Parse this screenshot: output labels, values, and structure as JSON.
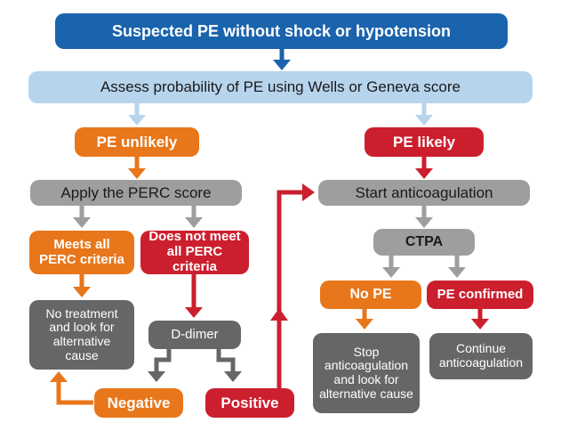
{
  "colors": {
    "title_blue": "#1a63ad",
    "light_blue": "#b7d4ed",
    "orange": "#e8761a",
    "red": "#cc1f2e",
    "gray": "#9e9e9e",
    "dark_gray": "#666666"
  },
  "nodes": {
    "title": "Suspected PE without shock or hypotension",
    "assess": "Assess probability of PE using Wells or Geneva score",
    "pe_unlikely": "PE unlikely",
    "pe_likely": "PE likely",
    "apply_perc": "Apply the PERC score",
    "start_anticoag": "Start anticoagulation",
    "meets_perc": "Meets all PERC criteria",
    "not_meets_perc": "Does not meet all PERC criteria",
    "ctpa": "CTPA",
    "no_pe": "No PE",
    "pe_confirmed": "PE confirmed",
    "no_treatment": "No treatment and look for alternative cause",
    "d_dimer": "D-dimer",
    "stop_anticoag": "Stop anticoagulation and look for alternative cause",
    "continue_anticoag": "Continue anticoagulation",
    "negative": "Negative",
    "positive": "Positive"
  }
}
